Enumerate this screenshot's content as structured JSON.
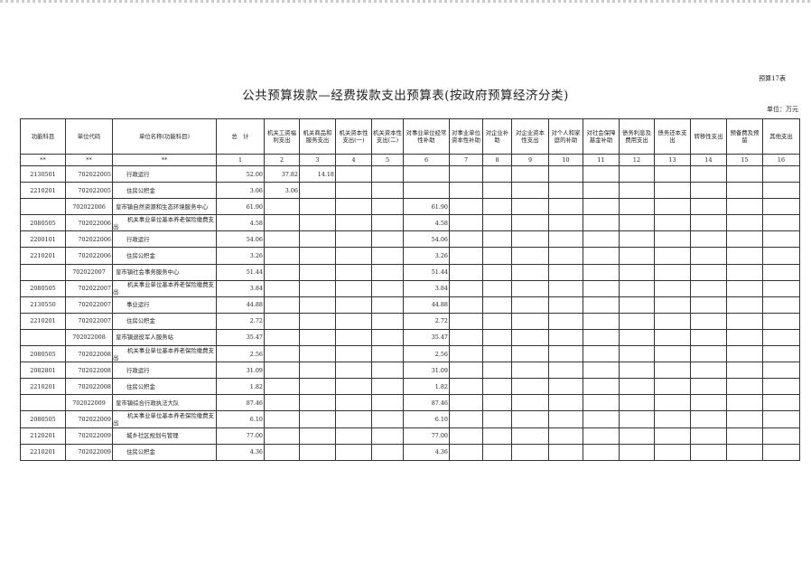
{
  "form_no": "预算17表",
  "title": "公共预算拨款—经费拨款支出预算表(按政府预算经济分类)",
  "unit": "单位：万元",
  "columns": [
    "功能科目",
    "单位代码",
    "单位名称(功能科目)",
    "总　计",
    "机关工资福利支出",
    "机关商品和服务支出",
    "机关资本性支出(一)",
    "机关资本性支出(二)",
    "对事业单位经常性补助",
    "对事业单位资本性补助",
    "对企业补助",
    "对企业资本性支出",
    "对个人和家庭的补助",
    "对社会保障基金补助",
    "债务利息及费用支出",
    "债务还本支出",
    "转移性支出",
    "预备费及预留",
    "其他支出"
  ],
  "column_numbers": [
    "**",
    "**",
    "**",
    "1",
    "2",
    "3",
    "4",
    "5",
    "6",
    "7",
    "8",
    "9",
    "10",
    "11",
    "12",
    "13",
    "14",
    "15",
    "16"
  ],
  "rows": [
    {
      "func": "2130501",
      "code": "702022005",
      "name": "行政运行",
      "total": "52.00",
      "c2": "37.82",
      "c3": "14.18",
      "c6": "",
      "style": "indent"
    },
    {
      "func": "2210201",
      "code": "702022005",
      "name": "住房公积金",
      "total": "3.06",
      "c2": "3.06",
      "c3": "",
      "c6": "",
      "style": "indent"
    },
    {
      "func": "",
      "code": "702022006",
      "name": "皇市镇自然资源和生态环境服务中心",
      "total": "61.90",
      "c2": "",
      "c3": "",
      "c6": "61.90",
      "style": "unit"
    },
    {
      "func": "2080505",
      "code": "702022006",
      "name": "机关事业单位基本养老保险缴费支出",
      "total": "4.58",
      "c2": "",
      "c3": "",
      "c6": "4.58",
      "style": "wrap"
    },
    {
      "func": "2200101",
      "code": "702022006",
      "name": "行政运行",
      "total": "54.06",
      "c2": "",
      "c3": "",
      "c6": "54.06",
      "style": "indent"
    },
    {
      "func": "2210201",
      "code": "702022006",
      "name": "住房公积金",
      "total": "3.26",
      "c2": "",
      "c3": "",
      "c6": "3.26",
      "style": "indent"
    },
    {
      "func": "",
      "code": "702022007",
      "name": "皇市镇社会事务服务中心",
      "total": "51.44",
      "c2": "",
      "c3": "",
      "c6": "51.44",
      "style": "unit"
    },
    {
      "func": "2080505",
      "code": "702022007",
      "name": "机关事业单位基本养老保险缴费支出",
      "total": "3.84",
      "c2": "",
      "c3": "",
      "c6": "3.84",
      "style": "wrap"
    },
    {
      "func": "2130550",
      "code": "702022007",
      "name": "事业运行",
      "total": "44.88",
      "c2": "",
      "c3": "",
      "c6": "44.88",
      "style": "indent"
    },
    {
      "func": "2210201",
      "code": "702022007",
      "name": "住房公积金",
      "total": "2.72",
      "c2": "",
      "c3": "",
      "c6": "2.72",
      "style": "indent"
    },
    {
      "func": "",
      "code": "702022008",
      "name": "皇市镇退役军人服务站",
      "total": "35.47",
      "c2": "",
      "c3": "",
      "c6": "35.47",
      "style": "unit"
    },
    {
      "func": "2080505",
      "code": "702022008",
      "name": "机关事业单位基本养老保险缴费支出",
      "total": "2.56",
      "c2": "",
      "c3": "",
      "c6": "2.56",
      "style": "wrap"
    },
    {
      "func": "2082801",
      "code": "702022008",
      "name": "行政运行",
      "total": "31.09",
      "c2": "",
      "c3": "",
      "c6": "31.09",
      "style": "indent"
    },
    {
      "func": "2210201",
      "code": "702022008",
      "name": "住房公积金",
      "total": "1.82",
      "c2": "",
      "c3": "",
      "c6": "1.82",
      "style": "indent"
    },
    {
      "func": "",
      "code": "702022009",
      "name": "皇市镇综合行政执法大队",
      "total": "87.46",
      "c2": "",
      "c3": "",
      "c6": "87.46",
      "style": "unit"
    },
    {
      "func": "2080505",
      "code": "702022009",
      "name": "机关事业单位基本养老保险缴费支出",
      "total": "6.10",
      "c2": "",
      "c3": "",
      "c6": "6.10",
      "style": "wrap"
    },
    {
      "func": "2120201",
      "code": "702022009",
      "name": "城乡社区规划与管理",
      "total": "77.00",
      "c2": "",
      "c3": "",
      "c6": "77.00",
      "style": "indent"
    },
    {
      "func": "2210201",
      "code": "702022009",
      "name": "住房公积金",
      "total": "4.36",
      "c2": "",
      "c3": "",
      "c6": "4.36",
      "style": "indent"
    }
  ]
}
